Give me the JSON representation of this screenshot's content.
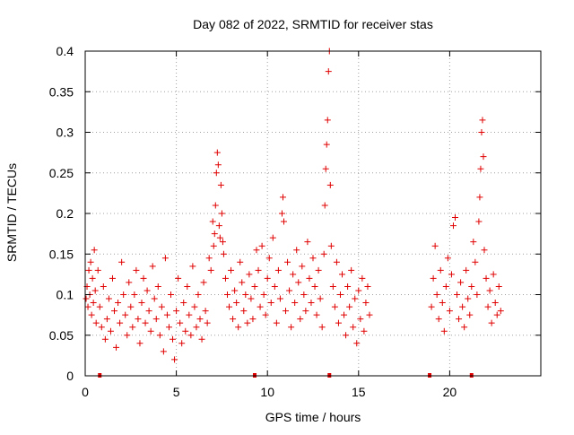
{
  "chart_data": {
    "type": "scatter",
    "title": "Day 082 of 2022, SRMTID for receiver stas",
    "xlabel": "GPS time / hours",
    "ylabel": "SRMTID / TECUs",
    "xlim": [
      0,
      25
    ],
    "ylim": [
      0,
      0.4
    ],
    "xticks": [
      0,
      5,
      10,
      15,
      20
    ],
    "yticks": [
      0,
      0.05,
      0.1,
      0.15,
      0.2,
      0.25,
      0.3,
      0.35,
      0.4
    ],
    "xtick_labels": [
      "0",
      "5",
      "10",
      "15",
      "20"
    ],
    "ytick_labels": [
      "0",
      "0.05",
      "0.1",
      "0.15",
      "0.2",
      "0.25",
      "0.3",
      "0.35",
      "0.4"
    ],
    "grid": true,
    "marker": "+",
    "color": "#e00000",
    "baseline_markers_x": [
      0.8,
      9.3,
      13.4,
      18.9,
      21.2
    ],
    "series": [
      {
        "name": "SRMTID",
        "points": [
          [
            0.05,
            0.095
          ],
          [
            0.1,
            0.11
          ],
          [
            0.15,
            0.085
          ],
          [
            0.2,
            0.13
          ],
          [
            0.25,
            0.1
          ],
          [
            0.3,
            0.14
          ],
          [
            0.35,
            0.075
          ],
          [
            0.4,
            0.12
          ],
          [
            0.45,
            0.09
          ],
          [
            0.5,
            0.155
          ],
          [
            0.55,
            0.105
          ],
          [
            0.6,
            0.065
          ],
          [
            0.7,
            0.13
          ],
          [
            0.8,
            0.085
          ],
          [
            0.9,
            0.06
          ],
          [
            1.0,
            0.11
          ],
          [
            1.1,
            0.045
          ],
          [
            1.2,
            0.07
          ],
          [
            1.3,
            0.095
          ],
          [
            1.4,
            0.055
          ],
          [
            1.5,
            0.12
          ],
          [
            1.6,
            0.08
          ],
          [
            1.7,
            0.035
          ],
          [
            1.8,
            0.09
          ],
          [
            1.9,
            0.065
          ],
          [
            2.0,
            0.14
          ],
          [
            2.1,
            0.1
          ],
          [
            2.2,
            0.075
          ],
          [
            2.3,
            0.05
          ],
          [
            2.4,
            0.115
          ],
          [
            2.5,
            0.085
          ],
          [
            2.6,
            0.06
          ],
          [
            2.7,
            0.1
          ],
          [
            2.8,
            0.13
          ],
          [
            2.9,
            0.07
          ],
          [
            3.0,
            0.04
          ],
          [
            3.1,
            0.09
          ],
          [
            3.2,
            0.12
          ],
          [
            3.3,
            0.065
          ],
          [
            3.4,
            0.105
          ],
          [
            3.5,
            0.08
          ],
          [
            3.6,
            0.055
          ],
          [
            3.7,
            0.135
          ],
          [
            3.8,
            0.095
          ],
          [
            3.9,
            0.07
          ],
          [
            4.0,
            0.11
          ],
          [
            4.1,
            0.05
          ],
          [
            4.2,
            0.085
          ],
          [
            4.3,
            0.03
          ],
          [
            4.4,
            0.145
          ],
          [
            4.5,
            0.075
          ],
          [
            4.6,
            0.06
          ],
          [
            4.7,
            0.1
          ],
          [
            4.8,
            0.045
          ],
          [
            4.9,
            0.02
          ],
          [
            5.0,
            0.08
          ],
          [
            5.1,
            0.12
          ],
          [
            5.2,
            0.065
          ],
          [
            5.3,
            0.04
          ],
          [
            5.4,
            0.09
          ],
          [
            5.5,
            0.055
          ],
          [
            5.6,
            0.11
          ],
          [
            5.7,
            0.075
          ],
          [
            5.8,
            0.05
          ],
          [
            5.9,
            0.135
          ],
          [
            6.0,
            0.085
          ],
          [
            6.1,
            0.06
          ],
          [
            6.2,
            0.1
          ],
          [
            6.3,
            0.07
          ],
          [
            6.4,
            0.045
          ],
          [
            6.5,
            0.115
          ],
          [
            6.6,
            0.08
          ],
          [
            6.7,
            0.065
          ],
          [
            6.8,
            0.145
          ],
          [
            6.9,
            0.13
          ],
          [
            7.0,
            0.19
          ],
          [
            7.05,
            0.16
          ],
          [
            7.1,
            0.175
          ],
          [
            7.15,
            0.21
          ],
          [
            7.2,
            0.25
          ],
          [
            7.25,
            0.275
          ],
          [
            7.3,
            0.26
          ],
          [
            7.35,
            0.185
          ],
          [
            7.4,
            0.17
          ],
          [
            7.45,
            0.235
          ],
          [
            7.5,
            0.2
          ],
          [
            7.55,
            0.165
          ],
          [
            7.6,
            0.15
          ],
          [
            7.7,
            0.12
          ],
          [
            7.8,
            0.1
          ],
          [
            7.9,
            0.085
          ],
          [
            8.0,
            0.13
          ],
          [
            8.1,
            0.07
          ],
          [
            8.2,
            0.105
          ],
          [
            8.3,
            0.09
          ],
          [
            8.4,
            0.06
          ],
          [
            8.5,
            0.14
          ],
          [
            8.6,
            0.115
          ],
          [
            8.7,
            0.08
          ],
          [
            8.8,
            0.1
          ],
          [
            8.9,
            0.065
          ],
          [
            9.0,
            0.125
          ],
          [
            9.1,
            0.095
          ],
          [
            9.2,
            0.07
          ],
          [
            9.3,
            0.11
          ],
          [
            9.4,
            0.155
          ],
          [
            9.5,
            0.13
          ],
          [
            9.6,
            0.085
          ],
          [
            9.7,
            0.16
          ],
          [
            9.8,
            0.1
          ],
          [
            9.9,
            0.075
          ],
          [
            10.0,
            0.12
          ],
          [
            10.1,
            0.145
          ],
          [
            10.2,
            0.09
          ],
          [
            10.3,
            0.17
          ],
          [
            10.4,
            0.11
          ],
          [
            10.5,
            0.065
          ],
          [
            10.6,
            0.13
          ],
          [
            10.7,
            0.095
          ],
          [
            10.8,
            0.2
          ],
          [
            10.85,
            0.22
          ],
          [
            10.9,
            0.19
          ],
          [
            11.0,
            0.08
          ],
          [
            11.1,
            0.14
          ],
          [
            11.2,
            0.105
          ],
          [
            11.3,
            0.06
          ],
          [
            11.4,
            0.125
          ],
          [
            11.5,
            0.09
          ],
          [
            11.6,
            0.155
          ],
          [
            11.7,
            0.115
          ],
          [
            11.8,
            0.07
          ],
          [
            11.9,
            0.135
          ],
          [
            12.0,
            0.1
          ],
          [
            12.1,
            0.08
          ],
          [
            12.2,
            0.165
          ],
          [
            12.3,
            0.12
          ],
          [
            12.4,
            0.09
          ],
          [
            12.5,
            0.145
          ],
          [
            12.6,
            0.11
          ],
          [
            12.7,
            0.075
          ],
          [
            12.8,
            0.13
          ],
          [
            12.9,
            0.095
          ],
          [
            13.0,
            0.06
          ],
          [
            13.1,
            0.15
          ],
          [
            13.15,
            0.21
          ],
          [
            13.2,
            0.255
          ],
          [
            13.25,
            0.285
          ],
          [
            13.3,
            0.315
          ],
          [
            13.35,
            0.375
          ],
          [
            13.4,
            0.4
          ],
          [
            13.45,
            0.235
          ],
          [
            13.5,
            0.16
          ],
          [
            13.6,
            0.11
          ],
          [
            13.7,
            0.085
          ],
          [
            13.8,
            0.14
          ],
          [
            13.9,
            0.065
          ],
          [
            14.0,
            0.1
          ],
          [
            14.1,
            0.125
          ],
          [
            14.2,
            0.075
          ],
          [
            14.3,
            0.05
          ],
          [
            14.4,
            0.11
          ],
          [
            14.5,
            0.085
          ],
          [
            14.6,
            0.13
          ],
          [
            14.7,
            0.06
          ],
          [
            14.8,
            0.095
          ],
          [
            14.9,
            0.04
          ],
          [
            15.0,
            0.105
          ],
          [
            15.1,
            0.07
          ],
          [
            15.2,
            0.12
          ],
          [
            15.3,
            0.055
          ],
          [
            15.4,
            0.09
          ],
          [
            15.5,
            0.11
          ],
          [
            15.6,
            0.075
          ],
          [
            19.0,
            0.085
          ],
          [
            19.1,
            0.12
          ],
          [
            19.2,
            0.16
          ],
          [
            19.3,
            0.1
          ],
          [
            19.4,
            0.07
          ],
          [
            19.5,
            0.13
          ],
          [
            19.6,
            0.09
          ],
          [
            19.7,
            0.055
          ],
          [
            19.8,
            0.11
          ],
          [
            19.9,
            0.145
          ],
          [
            20.0,
            0.08
          ],
          [
            20.1,
            0.125
          ],
          [
            20.2,
            0.185
          ],
          [
            20.3,
            0.195
          ],
          [
            20.4,
            0.1
          ],
          [
            20.5,
            0.07
          ],
          [
            20.6,
            0.115
          ],
          [
            20.7,
            0.085
          ],
          [
            20.8,
            0.06
          ],
          [
            20.9,
            0.13
          ],
          [
            21.0,
            0.095
          ],
          [
            21.1,
            0.075
          ],
          [
            21.2,
            0.11
          ],
          [
            21.3,
            0.165
          ],
          [
            21.4,
            0.14
          ],
          [
            21.5,
            0.1
          ],
          [
            21.6,
            0.19
          ],
          [
            21.65,
            0.22
          ],
          [
            21.7,
            0.255
          ],
          [
            21.75,
            0.3
          ],
          [
            21.8,
            0.315
          ],
          [
            21.85,
            0.27
          ],
          [
            21.9,
            0.155
          ],
          [
            22.0,
            0.12
          ],
          [
            22.1,
            0.085
          ],
          [
            22.2,
            0.105
          ],
          [
            22.3,
            0.065
          ],
          [
            22.4,
            0.125
          ],
          [
            22.5,
            0.09
          ],
          [
            22.6,
            0.075
          ],
          [
            22.7,
            0.11
          ],
          [
            22.8,
            0.08
          ]
        ]
      }
    ]
  }
}
